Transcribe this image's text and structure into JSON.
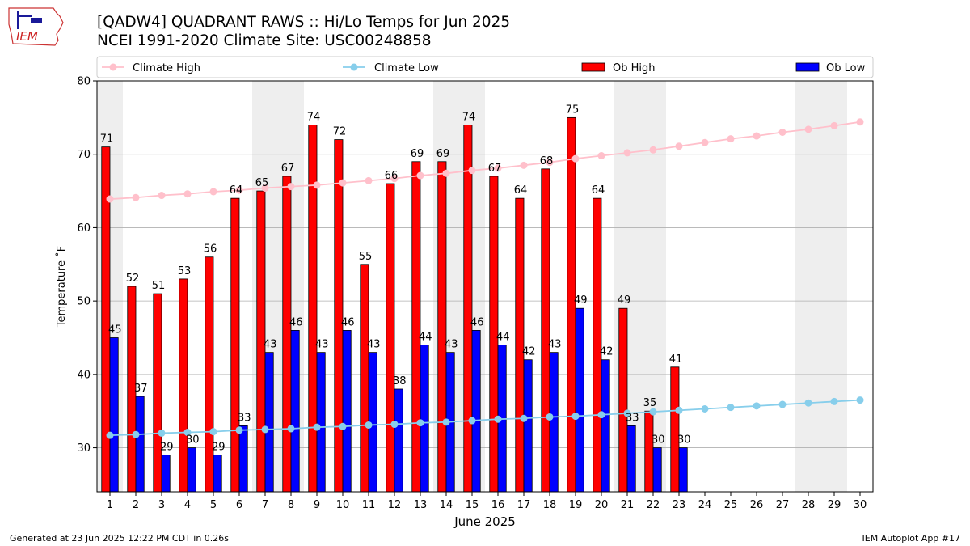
{
  "header": {
    "title_line1": "[QADW4] QUADRANT RAWS :: Hi/Lo Temps for Jun 2025",
    "title_line2": "NCEI 1991-2020 Climate Site: USC00248858",
    "logo_text": "IEM"
  },
  "footer": {
    "left": "Generated at 23 Jun 2025 12:22 PM CDT in 0.26s",
    "right": "IEM Autoplot App #17"
  },
  "chart_data": {
    "type": "bar",
    "title": "[QADW4] QUADRANT RAWS :: Hi/Lo Temps for Jun 2025",
    "subtitle": "NCEI 1991-2020 Climate Site: USC00248858",
    "xlabel": "June 2025",
    "ylabel": "Temperature ˚F",
    "ylim": [
      24,
      80
    ],
    "yticks": [
      30,
      40,
      50,
      60,
      70,
      80
    ],
    "xlim": [
      0.5,
      30.5
    ],
    "days": [
      1,
      2,
      3,
      4,
      5,
      6,
      7,
      8,
      9,
      10,
      11,
      12,
      13,
      14,
      15,
      16,
      17,
      18,
      19,
      20,
      21,
      22,
      23,
      24,
      25,
      26,
      27,
      28,
      29,
      30
    ],
    "weekend_bands": [
      [
        0.5,
        1.5
      ],
      [
        6.5,
        8.5
      ],
      [
        13.5,
        15.5
      ],
      [
        20.5,
        22.5
      ],
      [
        27.5,
        29.5
      ]
    ],
    "grid": "horizontal",
    "legend_position": "top",
    "series": [
      {
        "name": "Climate High",
        "kind": "line",
        "color": "#ffc0cb",
        "values": [
          63.9,
          64.1,
          64.4,
          64.6,
          64.9,
          65.1,
          65.4,
          65.6,
          65.8,
          66.1,
          66.4,
          66.7,
          67.1,
          67.4,
          67.8,
          68.1,
          68.5,
          68.9,
          69.4,
          69.8,
          70.2,
          70.6,
          71.1,
          71.6,
          72.1,
          72.5,
          73.0,
          73.4,
          73.9,
          74.4
        ]
      },
      {
        "name": "Climate Low",
        "kind": "line",
        "color": "#87ceeb",
        "values": [
          31.7,
          31.8,
          32.0,
          32.1,
          32.2,
          32.4,
          32.5,
          32.6,
          32.8,
          32.9,
          33.1,
          33.2,
          33.4,
          33.5,
          33.7,
          33.9,
          34.0,
          34.2,
          34.3,
          34.5,
          34.7,
          34.9,
          35.1,
          35.3,
          35.5,
          35.7,
          35.9,
          36.1,
          36.3,
          36.5
        ]
      },
      {
        "name": "Ob High",
        "kind": "bar",
        "color": "#ff0000",
        "values": [
          71,
          52,
          51,
          53,
          56,
          64,
          65,
          67,
          74,
          72,
          55,
          66,
          69,
          69,
          74,
          67,
          64,
          68,
          75,
          64,
          49,
          35,
          41
        ]
      },
      {
        "name": "Ob Low",
        "kind": "bar",
        "color": "#0000ff",
        "values": [
          45,
          37,
          29,
          30,
          29,
          33,
          43,
          46,
          43,
          46,
          43,
          38,
          44,
          43,
          46,
          44,
          42,
          43,
          49,
          42,
          33,
          30,
          30
        ]
      }
    ]
  }
}
